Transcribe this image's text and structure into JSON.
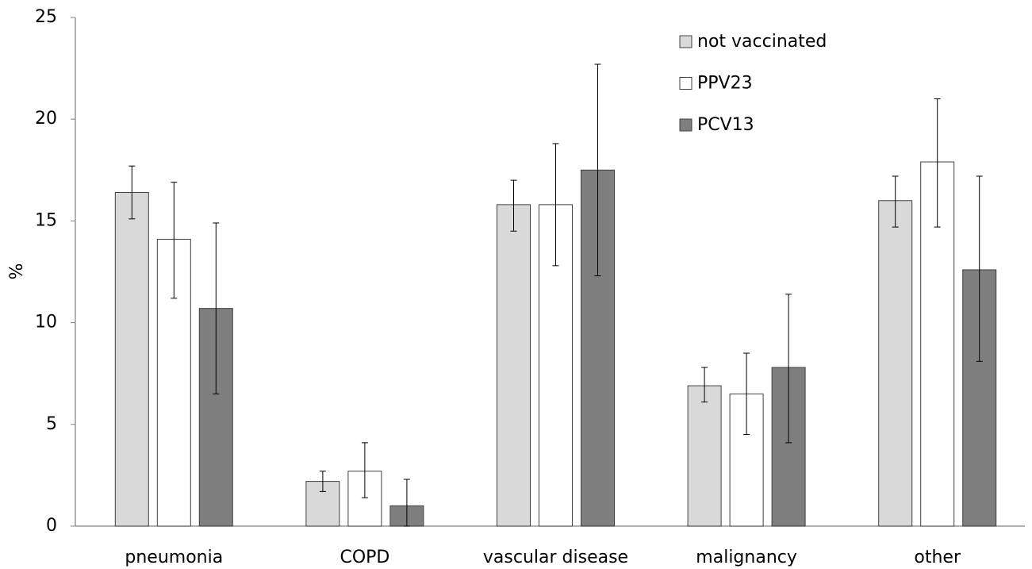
{
  "chart_data": {
    "type": "bar",
    "y_label": "%",
    "categories": [
      "pneumonia",
      "COPD",
      "vascular disease",
      "malignancy",
      "other"
    ],
    "series": [
      {
        "name": "not vaccinated",
        "color": "#d9d9d9",
        "values": [
          16.4,
          2.2,
          15.8,
          6.9,
          16.0
        ],
        "ci_low": [
          15.1,
          1.7,
          14.5,
          6.1,
          14.7
        ],
        "ci_high": [
          17.7,
          2.7,
          17.0,
          7.8,
          17.2
        ]
      },
      {
        "name": "PPV23",
        "color": "#ffffff",
        "values": [
          14.1,
          2.7,
          15.8,
          6.5,
          17.9
        ],
        "ci_low": [
          11.2,
          1.4,
          12.8,
          4.5,
          14.7
        ],
        "ci_high": [
          16.9,
          4.1,
          18.8,
          8.5,
          21.0
        ]
      },
      {
        "name": "PCV13",
        "color": "#7f7f7f",
        "values": [
          10.7,
          1.0,
          17.5,
          7.8,
          12.6
        ],
        "ci_low": [
          6.5,
          0,
          12.3,
          4.1,
          8.1
        ],
        "ci_high": [
          14.9,
          2.3,
          22.7,
          11.4,
          17.2
        ]
      }
    ],
    "ylim": [
      0,
      25
    ],
    "yticks": [
      0,
      5,
      10,
      15,
      20,
      25
    ],
    "grid": false
  }
}
